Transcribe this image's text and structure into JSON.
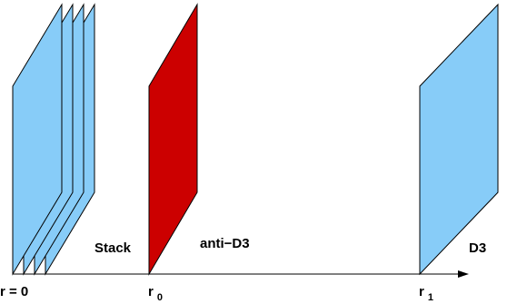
{
  "diagram": {
    "labels": {
      "stack": "Stack",
      "anti_d3": "anti−D3",
      "d3": "D3",
      "r_origin": "r = 0",
      "r0_symbol": "r",
      "r0_subscript": "0",
      "r1_symbol": "r",
      "r1_subscript": "1"
    },
    "colors": {
      "brane_fill": "#87ccf8",
      "anti_brane_fill": "#cc0000",
      "outline": "#000000",
      "axis": "#000000"
    }
  }
}
